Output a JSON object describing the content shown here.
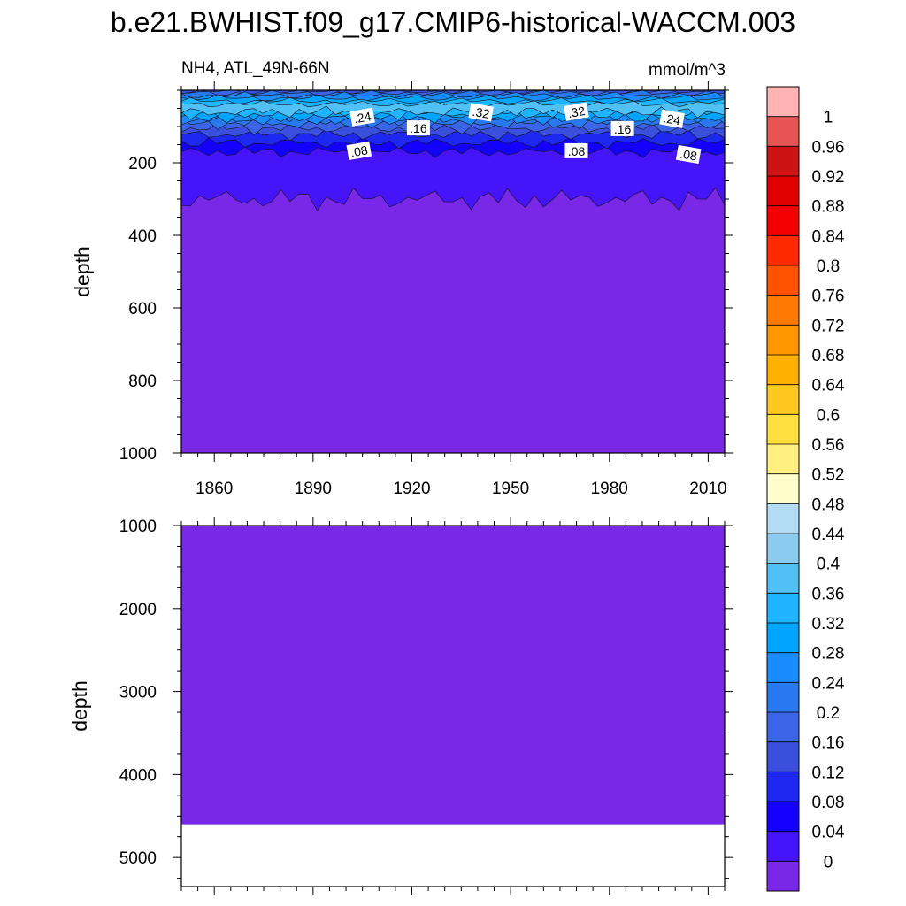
{
  "title": "b.e21.BWHIST.f09_g17.CMIP6-historical-WACCM.003",
  "chart_data": [
    {
      "type": "heatmap",
      "panel": "upper",
      "left_label": "NH4, ATL_49N-66N",
      "right_label": "mmol/m^3",
      "ylabel": "depth",
      "xlim": [
        1850,
        2015
      ],
      "ylim": [
        0,
        1000
      ],
      "y_reversed": true,
      "x_ticks": [
        "1860",
        "1890",
        "1920",
        "1950",
        "1980",
        "2010"
      ],
      "y_ticks": [
        "200",
        "400",
        "600",
        "800",
        "1000"
      ],
      "layers": [
        {
          "level": 0.4,
          "depth_range": [
            38,
            60
          ]
        },
        {
          "level": 0.36,
          "depth_range": [
            30,
            65
          ]
        },
        {
          "level": 0.32,
          "depth_range": [
            22,
            75
          ]
        },
        {
          "level": 0.28,
          "depth_range": [
            14,
            82
          ]
        },
        {
          "level": 0.24,
          "depth_range": [
            8,
            92
          ]
        },
        {
          "level": 0.2,
          "depth_range": [
            4,
            105
          ]
        },
        {
          "level": 0.16,
          "depth_range": [
            0,
            122
          ]
        },
        {
          "level": 0.12,
          "depth_range": [
            0,
            145
          ]
        },
        {
          "level": 0.08,
          "depth_range": [
            0,
            170
          ]
        },
        {
          "level": 0.04,
          "depth_range": [
            0,
            300
          ]
        },
        {
          "level": 0.0,
          "depth_range": [
            300,
            1000
          ]
        }
      ],
      "contour_labels": [
        {
          "text": ".24",
          "year": 1905,
          "depth": 75
        },
        {
          "text": ".16",
          "year": 1922,
          "depth": 105
        },
        {
          "text": ".32",
          "year": 1941,
          "depth": 62
        },
        {
          "text": ".32",
          "year": 1970,
          "depth": 60
        },
        {
          "text": ".16",
          "year": 1984,
          "depth": 107
        },
        {
          "text": ".24",
          "year": 1999,
          "depth": 80
        },
        {
          "text": ".08",
          "year": 1904,
          "depth": 168
        },
        {
          "text": ".08",
          "year": 1970,
          "depth": 168
        },
        {
          "text": ".08",
          "year": 2004,
          "depth": 178
        }
      ]
    },
    {
      "type": "heatmap",
      "panel": "lower",
      "ylabel": "depth",
      "xlim": [
        1850,
        2015
      ],
      "ylim": [
        1000,
        5350
      ],
      "y_reversed": true,
      "y_ticks": [
        "1000",
        "2000",
        "3000",
        "4000",
        "5000"
      ],
      "data_bottom_depth": 4600,
      "fill_level": 0.0
    }
  ],
  "colorbar": {
    "labels": [
      "1",
      "0.96",
      "0.92",
      "0.88",
      "0.84",
      "0.8",
      "0.76",
      "0.72",
      "0.68",
      "0.64",
      "0.6",
      "0.56",
      "0.52",
      "0.48",
      "0.44",
      "0.4",
      "0.36",
      "0.32",
      "0.28",
      "0.24",
      "0.2",
      "0.16",
      "0.12",
      "0.08",
      "0.04",
      "0"
    ],
    "colors": [
      "#FFB3B3",
      "#E65454",
      "#CC1414",
      "#E00000",
      "#F40000",
      "#FF2A00",
      "#FF5200",
      "#FF7A00",
      "#FF9800",
      "#FFB000",
      "#FFC820",
      "#FFE040",
      "#FFF080",
      "#FFFFCC",
      "#B4DDF5",
      "#8CCBF0",
      "#50C0F5",
      "#1EB4FF",
      "#00A5FF",
      "#1A8CFF",
      "#2878F0",
      "#3C64E6",
      "#3A50DC",
      "#1E28F0",
      "#1400FF",
      "#4614F8",
      "#7A28E8"
    ]
  }
}
